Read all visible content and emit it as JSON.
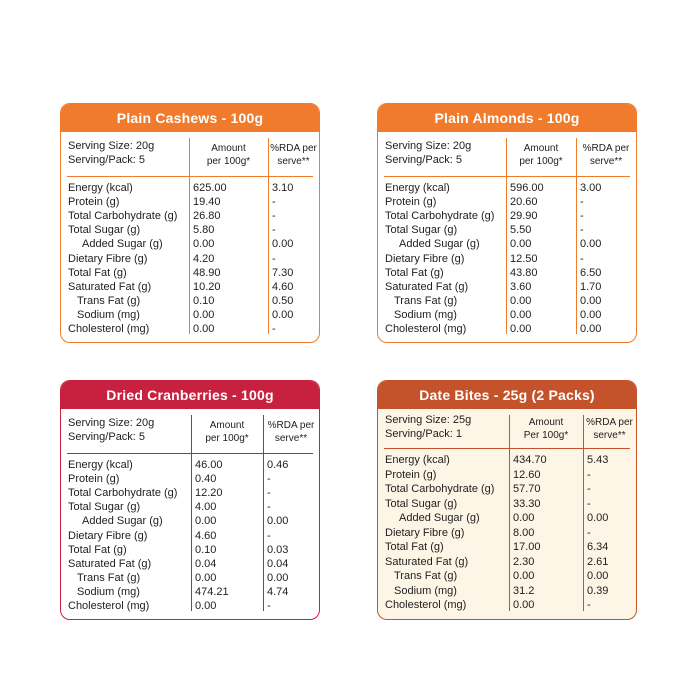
{
  "cards": [
    {
      "title": "Plain Cashews - 100g",
      "serving_size": "Serving Size: 20g",
      "serving_pack": "Serving/Pack: 5",
      "amount_header": [
        "Amount",
        "per 100g*"
      ],
      "rda_header": [
        "%RDA per",
        "serve**"
      ],
      "rows": [
        [
          "Energy (kcal)",
          "625.00",
          "3.10"
        ],
        [
          "Protein (g)",
          "19.40",
          "-"
        ],
        [
          "Total Carbohydrate (g)",
          "26.80",
          "-"
        ],
        [
          "Total Sugar (g)",
          "5.80",
          "-"
        ],
        [
          "Added Sugar (g)",
          "0.00",
          "0.00"
        ],
        [
          "Dietary Fibre (g)",
          "4.20",
          "-"
        ],
        [
          "Total Fat (g)",
          "48.90",
          "7.30"
        ],
        [
          "Saturated Fat (g)",
          "10.20",
          "4.60"
        ],
        [
          "Trans Fat (g)",
          "0.10",
          "0.50"
        ],
        [
          "Sodium (mg)",
          "0.00",
          "0.00"
        ],
        [
          "Cholesterol (mg)",
          "0.00",
          "-"
        ]
      ]
    },
    {
      "title": "Plain Almonds - 100g",
      "serving_size": "Serving Size: 20g",
      "serving_pack": "Serving/Pack: 5",
      "amount_header": [
        "Amount",
        "per 100g*"
      ],
      "rda_header": [
        "%RDA per",
        "serve**"
      ],
      "rows": [
        [
          "Energy (kcal)",
          "596.00",
          "3.00"
        ],
        [
          "Protein (g)",
          "20.60",
          "-"
        ],
        [
          "Total Carbohydrate (g)",
          "29.90",
          "-"
        ],
        [
          "Total Sugar (g)",
          "5.50",
          "-"
        ],
        [
          "Added Sugar (g)",
          "0.00",
          "0.00"
        ],
        [
          "Dietary Fibre (g)",
          "12.50",
          "-"
        ],
        [
          "Total Fat (g)",
          "43.80",
          "6.50"
        ],
        [
          "Saturated Fat (g)",
          "3.60",
          "1.70"
        ],
        [
          "Trans Fat (g)",
          "0.00",
          "0.00"
        ],
        [
          "Sodium (mg)",
          "0.00",
          "0.00"
        ],
        [
          "Cholesterol (mg)",
          "0.00",
          "0.00"
        ]
      ]
    },
    {
      "title": "Dried Cranberries - 100g",
      "serving_size": "Serving Size: 20g",
      "serving_pack": "Serving/Pack: 5",
      "amount_header": [
        "Amount",
        "per 100g*"
      ],
      "rda_header": [
        "%RDA per",
        "serve**"
      ],
      "rows": [
        [
          "Energy (kcal)",
          "46.00",
          "0.46"
        ],
        [
          "Protein (g)",
          "0.40",
          "-"
        ],
        [
          "Total Carbohydrate (g)",
          "12.20",
          "-"
        ],
        [
          "Total Sugar (g)",
          "4.00",
          "-"
        ],
        [
          "Added Sugar (g)",
          "0.00",
          "0.00"
        ],
        [
          "Dietary Fibre (g)",
          "4.60",
          "-"
        ],
        [
          "Total Fat (g)",
          "0.10",
          "0.03"
        ],
        [
          "Saturated Fat (g)",
          "0.04",
          "0.04"
        ],
        [
          "Trans Fat (g)",
          "0.00",
          "0.00"
        ],
        [
          "Sodium (mg)",
          "474.21",
          "4.74"
        ],
        [
          "Cholesterol (mg)",
          "0.00",
          "-"
        ]
      ]
    },
    {
      "title": "Date Bites - 25g (2 Packs)",
      "serving_size": "Serving Size: 25g",
      "serving_pack": "Serving/Pack: 1",
      "amount_header": [
        "Amount",
        "Per 100g*"
      ],
      "rda_header": [
        "%RDA per",
        "serve**"
      ],
      "rows": [
        [
          "Energy (kcal)",
          "434.70",
          "5.43"
        ],
        [
          "Protein (g)",
          "12.60",
          "-"
        ],
        [
          "Total Carbohydrate (g)",
          "57.70",
          "-"
        ],
        [
          "Total Sugar (g)",
          "33.30",
          "-"
        ],
        [
          "Added Sugar (g)",
          "0.00",
          "0.00"
        ],
        [
          "Dietary Fibre (g)",
          "8.00",
          "-"
        ],
        [
          "Total Fat (g)",
          "17.00",
          "6.34"
        ],
        [
          "Saturated Fat (g)",
          "2.30",
          "2.61"
        ],
        [
          "Trans Fat (g)",
          "0.00",
          "0.00"
        ],
        [
          "Sodium (mg)",
          "31.2",
          "0.39"
        ],
        [
          "Cholesterol (mg)",
          "0.00",
          "-"
        ]
      ]
    }
  ]
}
